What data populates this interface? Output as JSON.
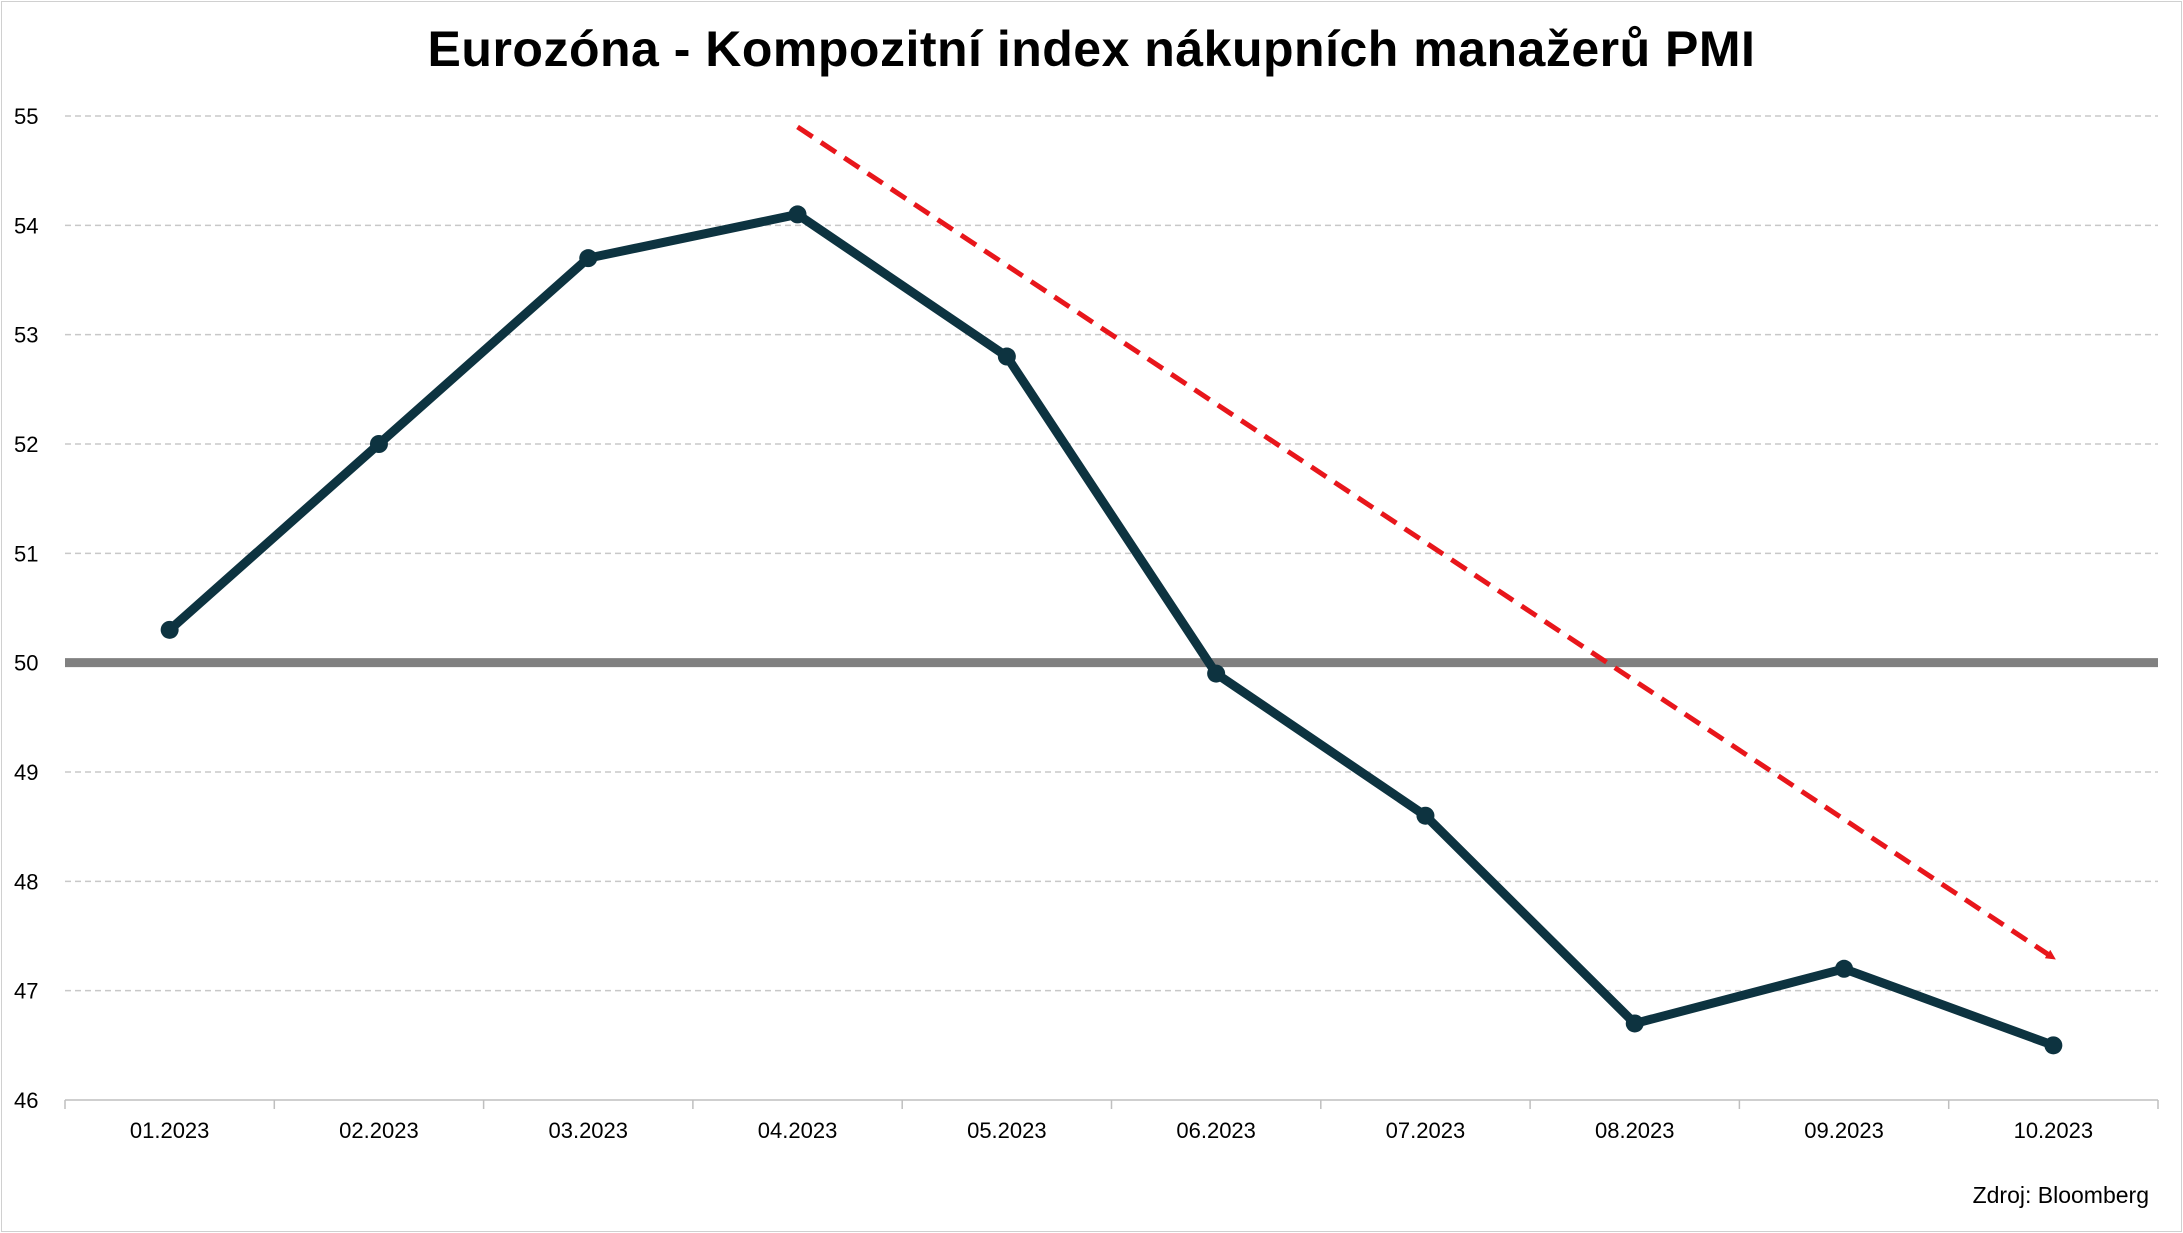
{
  "chart_data": {
    "type": "line",
    "title": "Eurozóna - Kompozitní index nákupních manažerů PMI",
    "xlabel": "",
    "ylabel": "",
    "categories": [
      "01.2023",
      "02.2023",
      "03.2023",
      "04.2023",
      "05.2023",
      "06.2023",
      "07.2023",
      "08.2023",
      "09.2023",
      "10.2023"
    ],
    "series": [
      {
        "values": [
          50.3,
          52.0,
          53.7,
          54.1,
          52.8,
          49.9,
          48.6,
          46.7,
          47.2,
          46.5
        ],
        "color": "#0d3340"
      }
    ],
    "ylim": [
      46,
      55
    ],
    "yticks": [
      "46",
      "47",
      "48",
      "49",
      "50",
      "51",
      "52",
      "53",
      "54",
      "55"
    ],
    "reference_line": {
      "value": 50,
      "color": "#808080"
    },
    "trend_arrow": {
      "from": {
        "x": "04.2023",
        "y": 54.9
      },
      "to": {
        "x": "10.2023",
        "y": 47.3
      },
      "color": "#e8161b",
      "style": "dashed"
    },
    "grid": true,
    "source": "Zdroj: Bloomberg"
  }
}
